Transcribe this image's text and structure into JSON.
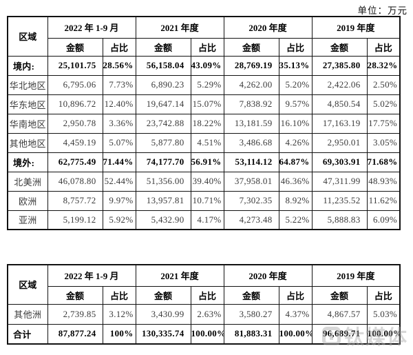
{
  "unit_label": "单位：万元",
  "headers": {
    "region": "区域",
    "amount": "金额",
    "ratio": "占比",
    "periods": [
      "2022 年 1-9 月",
      "2021 年度",
      "2020 年度",
      "2019 年度"
    ]
  },
  "table1": {
    "rows": [
      {
        "region": "境内:",
        "bold": true,
        "cells": [
          "25,101.75",
          "28.56%",
          "56,158.04",
          "43.09%",
          "28,769.19",
          "35.13%",
          "27,385.80",
          "28.32%"
        ]
      },
      {
        "region": "华北地区",
        "bold": false,
        "cells": [
          "6,795.06",
          "7.73%",
          "6,890.23",
          "5.29%",
          "4,262.00",
          "5.20%",
          "2,422.06",
          "2.50%"
        ]
      },
      {
        "region": "华东地区",
        "bold": false,
        "cells": [
          "10,896.72",
          "12.40%",
          "19,647.14",
          "15.07%",
          "7,838.92",
          "9.57%",
          "4,850.54",
          "5.02%"
        ]
      },
      {
        "region": "华南地区",
        "bold": false,
        "cells": [
          "2,950.78",
          "3.36%",
          "23,742.88",
          "18.22%",
          "13,181.59",
          "16.10%",
          "17,163.19",
          "17.75%"
        ]
      },
      {
        "region": "其他地区",
        "bold": false,
        "cells": [
          "4,459.19",
          "5.07%",
          "5,877.80",
          "4.51%",
          "3,486.68",
          "4.26%",
          "2,950.01",
          "3.05%"
        ]
      },
      {
        "region": "境外:",
        "bold": true,
        "cells": [
          "62,775.49",
          "71.44%",
          "74,177.70",
          "56.91%",
          "53,114.12",
          "64.87%",
          "69,303.91",
          "71.68%"
        ]
      },
      {
        "region": "北美洲",
        "bold": false,
        "cells": [
          "46,078.80",
          "52.44%",
          "51,356.00",
          "39.40%",
          "37,958.01",
          "46.36%",
          "47,311.99",
          "48.93%"
        ]
      },
      {
        "region": "欧洲",
        "bold": false,
        "cells": [
          "8,757.72",
          "9.97%",
          "13,957.81",
          "10.71%",
          "7,302.35",
          "8.92%",
          "11,235.52",
          "11.62%"
        ]
      },
      {
        "region": "亚洲",
        "bold": false,
        "cells": [
          "5,199.12",
          "5.92%",
          "5,432.90",
          "4.17%",
          "4,273.48",
          "5.22%",
          "5,888.83",
          "6.09%"
        ]
      }
    ]
  },
  "table2": {
    "rows": [
      {
        "region": "其他洲",
        "bold": false,
        "cells": [
          "2,739.85",
          "3.12%",
          "3,430.99",
          "2.63%",
          "3,580.27",
          "4.37%",
          "4,867.57",
          "5.03%"
        ]
      },
      {
        "region": "合计",
        "bold": true,
        "cells": [
          "87,877.24",
          "100%",
          "130,335.74",
          "100.00%",
          "81,883.31",
          "100.00%",
          "96,689.71",
          "100.00%"
        ]
      }
    ]
  },
  "watermark": {
    "text": "钛媒体"
  }
}
